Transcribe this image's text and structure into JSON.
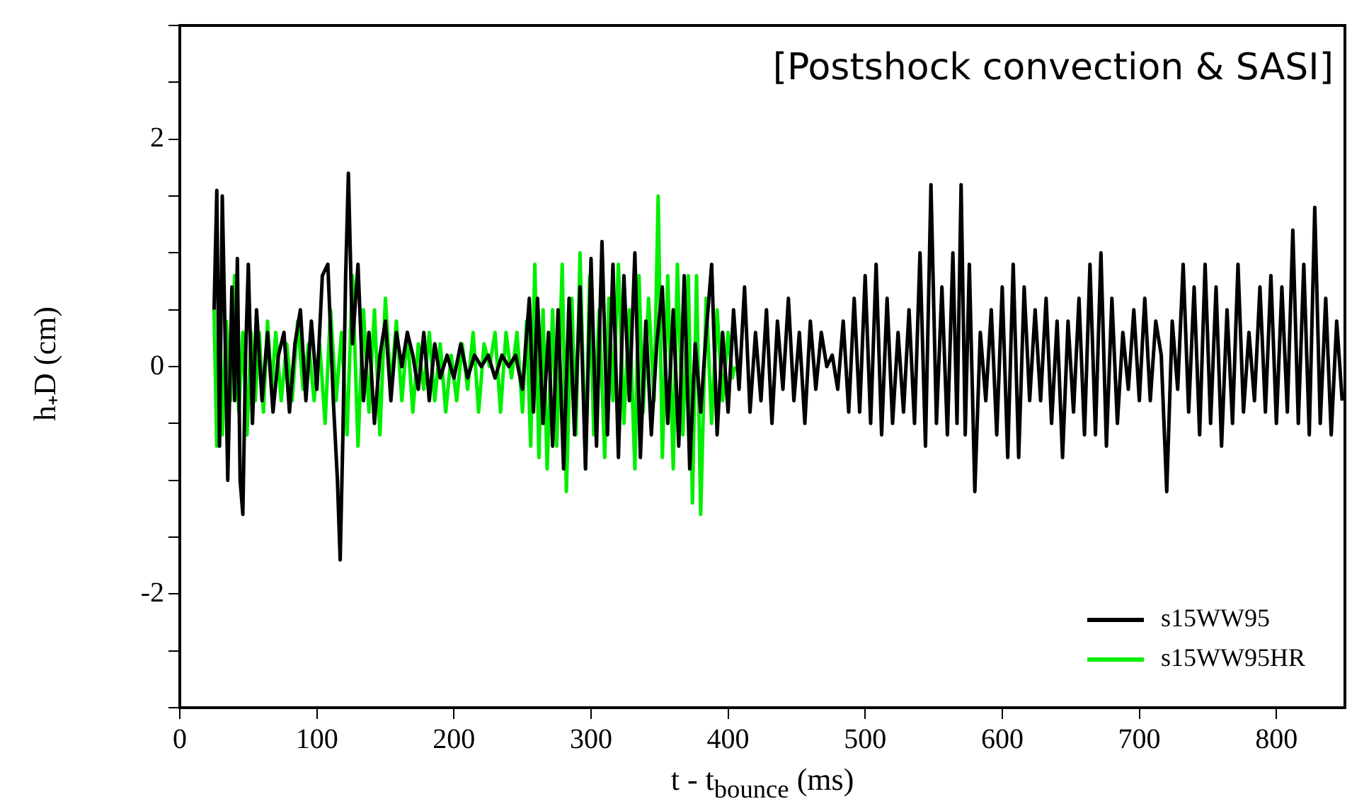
{
  "chart_data": {
    "type": "line",
    "xlabel": "t - t$_{bounce}$ (ms)",
    "ylabel": "h₊D  (cm)",
    "annotations": [
      "[Postshock convection & SASI]"
    ],
    "xlim": [
      0,
      850
    ],
    "xticks": [
      0,
      100,
      200,
      300,
      400,
      500,
      600,
      700,
      800
    ],
    "ylim": [
      -3,
      3
    ],
    "yticks": [
      {
        "value": -3,
        "label": null
      },
      {
        "value": -2.5,
        "label": null
      },
      -2,
      {
        "value": -1.5,
        "label": null
      },
      {
        "value": -1,
        "label": null
      },
      {
        "value": -0.5,
        "label": null
      },
      0,
      {
        "value": 0.5,
        "label": null
      },
      {
        "value": 1,
        "label": null
      },
      {
        "value": 1.5,
        "label": null
      },
      2,
      {
        "value": 2.5,
        "label": null
      },
      {
        "value": 3,
        "label": null
      }
    ],
    "grid": false,
    "legend": "bottom right",
    "marker": "none",
    "line_style": "solid",
    "series": [
      {
        "name": "s15WW95",
        "color": "#000000",
        "x": [
          25,
          27,
          29,
          31,
          33,
          35,
          38,
          40,
          42,
          44,
          46,
          48,
          50,
          53,
          56,
          60,
          64,
          68,
          72,
          76,
          80,
          84,
          88,
          92,
          96,
          100,
          104,
          108,
          112,
          115,
          117,
          119,
          121,
          123,
          126,
          130,
          134,
          138,
          142,
          146,
          150,
          154,
          158,
          162,
          166,
          170,
          174,
          178,
          182,
          186,
          190,
          195,
          200,
          205,
          210,
          215,
          220,
          225,
          230,
          235,
          240,
          245,
          250,
          255,
          258,
          261,
          265,
          269,
          272,
          276,
          280,
          284,
          288,
          292,
          296,
          300,
          304,
          308,
          312,
          316,
          320,
          324,
          328,
          332,
          336,
          340,
          344,
          348,
          352,
          356,
          360,
          364,
          368,
          372,
          376,
          380,
          384,
          388,
          392,
          396,
          400,
          404,
          408,
          412,
          416,
          420,
          424,
          428,
          432,
          436,
          440,
          444,
          448,
          452,
          456,
          460,
          464,
          468,
          472,
          476,
          480,
          484,
          488,
          492,
          496,
          500,
          504,
          508,
          512,
          516,
          520,
          524,
          528,
          532,
          536,
          540,
          544,
          548,
          552,
          556,
          560,
          564,
          567,
          570,
          573,
          576,
          580,
          584,
          588,
          592,
          596,
          600,
          604,
          608,
          612,
          616,
          620,
          624,
          628,
          632,
          636,
          640,
          644,
          648,
          652,
          656,
          660,
          664,
          668,
          672,
          676,
          680,
          684,
          688,
          692,
          696,
          700,
          704,
          708,
          712,
          716,
          720,
          724,
          728,
          732,
          736,
          740,
          744,
          748,
          752,
          756,
          760,
          764,
          768,
          772,
          776,
          780,
          784,
          788,
          792,
          796,
          800,
          804,
          808,
          812,
          816,
          820,
          824,
          828,
          832,
          836,
          840,
          844,
          848
        ],
        "values": [
          0.5,
          1.55,
          -0.7,
          1.5,
          0.3,
          -1.0,
          0.7,
          -0.3,
          0.95,
          -1.0,
          -1.3,
          0.1,
          0.9,
          -0.5,
          0.5,
          -0.3,
          0.3,
          -0.4,
          0.1,
          0.3,
          -0.4,
          0.2,
          0.5,
          -0.3,
          0.4,
          -0.2,
          0.8,
          0.9,
          -0.3,
          -1.0,
          -1.7,
          -0.6,
          0.8,
          1.7,
          0.2,
          0.9,
          -0.3,
          0.3,
          -0.5,
          0.1,
          0.4,
          -0.3,
          0.3,
          0.0,
          0.3,
          0.1,
          -0.2,
          0.3,
          -0.3,
          0.2,
          -0.1,
          0.1,
          -0.1,
          0.2,
          -0.1,
          0.1,
          0.0,
          0.1,
          -0.1,
          0.1,
          0.0,
          0.1,
          -0.2,
          0.6,
          -0.4,
          0.6,
          -0.5,
          0.3,
          -0.7,
          0.5,
          -0.9,
          0.6,
          -0.6,
          0.7,
          -0.9,
          0.95,
          -0.7,
          1.1,
          -0.6,
          0.9,
          -0.8,
          0.8,
          -0.3,
          1.0,
          -0.8,
          0.4,
          -0.6,
          0.2,
          0.7,
          -0.5,
          0.5,
          -0.7,
          0.8,
          -0.9,
          0.2,
          -0.4,
          0.3,
          0.9,
          -0.6,
          0.3,
          -0.4,
          0.5,
          -0.2,
          0.7,
          -0.4,
          0.3,
          -0.3,
          0.5,
          -0.5,
          0.4,
          -0.2,
          0.6,
          -0.3,
          0.3,
          -0.5,
          0.4,
          -0.2,
          0.3,
          0.0,
          0.1,
          -0.2,
          0.4,
          -0.4,
          0.6,
          -0.4,
          0.8,
          -0.5,
          0.9,
          -0.6,
          0.6,
          -0.5,
          0.3,
          -0.4,
          0.5,
          -0.5,
          1.0,
          -0.7,
          1.6,
          -0.5,
          0.7,
          -0.6,
          1.0,
          -0.5,
          1.6,
          -0.6,
          0.9,
          -1.1,
          0.3,
          -0.3,
          0.5,
          -0.6,
          0.7,
          -0.8,
          0.9,
          -0.8,
          0.7,
          -0.3,
          0.5,
          -0.3,
          0.6,
          -0.5,
          0.4,
          -0.8,
          0.4,
          -0.4,
          0.6,
          -0.6,
          0.9,
          -0.6,
          1.0,
          -0.7,
          0.6,
          -0.5,
          0.3,
          -0.2,
          0.5,
          -0.3,
          0.6,
          -0.3,
          0.4,
          0.1,
          -1.1,
          0.4,
          -0.2,
          0.9,
          -0.4,
          0.7,
          -0.6,
          0.9,
          -0.5,
          0.7,
          -0.7,
          0.5,
          -0.5,
          0.9,
          -0.4,
          0.3,
          -0.3,
          0.7,
          -0.4,
          0.8,
          -0.5,
          0.7,
          -0.4,
          1.2,
          -0.5,
          0.9,
          -0.6,
          1.4,
          -0.5,
          0.6,
          -0.6,
          0.4,
          -0.3
        ]
      },
      {
        "name": "s15WW95HR",
        "color": "#00ee00",
        "x": [
          25,
          27,
          29,
          31,
          34,
          37,
          40,
          43,
          46,
          49,
          52,
          55,
          58,
          61,
          64,
          67,
          70,
          74,
          78,
          82,
          86,
          90,
          94,
          98,
          102,
          106,
          110,
          114,
          118,
          122,
          126,
          130,
          134,
          138,
          142,
          146,
          150,
          154,
          158,
          162,
          166,
          170,
          174,
          178,
          182,
          186,
          190,
          194,
          198,
          202,
          206,
          210,
          214,
          218,
          222,
          226,
          230,
          234,
          238,
          242,
          246,
          250,
          253,
          256,
          259,
          262,
          265,
          268,
          272,
          275,
          279,
          282,
          286,
          289,
          292,
          296,
          299,
          302,
          306,
          310,
          313,
          316,
          320,
          324,
          328,
          332,
          335,
          338,
          342,
          346,
          349,
          352,
          356,
          360,
          363,
          367,
          371,
          374,
          377,
          380,
          384,
          388,
          392,
          396,
          400,
          403,
          405
        ],
        "values": [
          0.5,
          -0.7,
          0.6,
          -0.6,
          0.4,
          -0.3,
          0.8,
          -0.4,
          0.3,
          -0.6,
          0.3,
          -0.3,
          0.3,
          -0.4,
          0.4,
          -0.2,
          0.3,
          -0.3,
          0.2,
          -0.3,
          0.4,
          -0.2,
          0.2,
          -0.3,
          0.2,
          -0.5,
          0.5,
          -0.3,
          0.3,
          -0.6,
          0.8,
          -0.7,
          0.5,
          -0.4,
          0.5,
          -0.6,
          0.6,
          -0.2,
          0.4,
          -0.3,
          0.3,
          -0.4,
          0.2,
          -0.2,
          0.3,
          -0.3,
          0.2,
          -0.4,
          0.1,
          -0.3,
          0.2,
          -0.2,
          0.3,
          -0.4,
          0.2,
          0.0,
          0.3,
          -0.4,
          0.3,
          -0.1,
          0.3,
          -0.4,
          0.4,
          -0.7,
          0.9,
          -0.8,
          0.5,
          -0.9,
          0.5,
          -0.7,
          0.9,
          -1.1,
          0.6,
          -0.6,
          1.0,
          -0.9,
          0.8,
          -0.6,
          0.5,
          -0.8,
          0.6,
          -0.3,
          0.9,
          -0.5,
          0.5,
          -0.9,
          0.8,
          -0.4,
          0.6,
          -0.3,
          1.5,
          -0.8,
          0.8,
          -0.9,
          0.9,
          -0.6,
          0.8,
          -1.2,
          0.8,
          -1.3,
          0.6,
          -0.5,
          0.5,
          -0.3,
          0.3,
          -0.1,
          0.0
        ]
      }
    ]
  }
}
